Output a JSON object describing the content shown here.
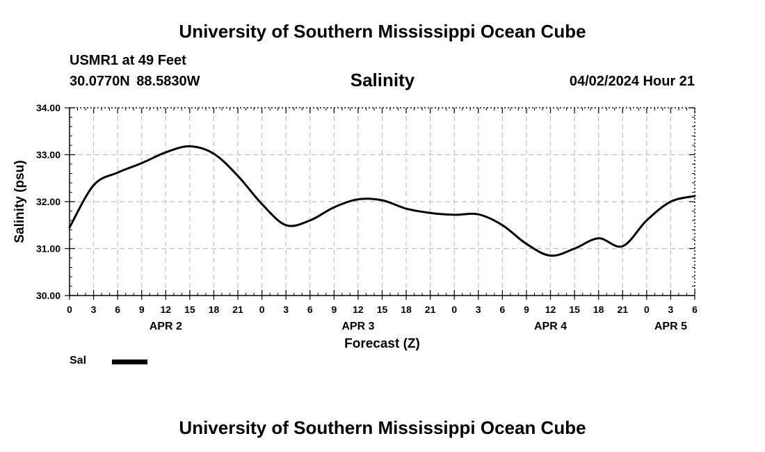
{
  "header": {
    "title_top": "University of Southern Mississippi Ocean Cube",
    "station": "USMR1 at 49 Feet",
    "coords": "30.0770N  88.5830W",
    "datetime": "04/02/2024 Hour 21",
    "title_bottom": "University of Southern Mississippi Ocean Cube"
  },
  "legend": {
    "label": "Sal",
    "line_color": "#000000"
  },
  "colors": {
    "line": "#000000",
    "grid": "#bfbfbf",
    "axis": "#000000"
  },
  "chart_data": {
    "type": "line",
    "title": "Salinity",
    "xlabel": "Forecast (Z)",
    "ylabel": "Salinity (psu)",
    "ylim": [
      30.0,
      34.0
    ],
    "yticks": [
      "30.00",
      "31.00",
      "32.00",
      "33.00",
      "34.00"
    ],
    "xlim": [
      0,
      78
    ],
    "xtick_step": 3,
    "xtick_labels": [
      "0",
      "3",
      "6",
      "9",
      "12",
      "15",
      "18",
      "21",
      "0",
      "3",
      "6",
      "9",
      "12",
      "15",
      "18",
      "21",
      "0",
      "3",
      "6",
      "9",
      "12",
      "15",
      "18",
      "21",
      "0",
      "3",
      "6"
    ],
    "day_labels": [
      {
        "label": "APR 2",
        "hour": 12
      },
      {
        "label": "APR 3",
        "hour": 36
      },
      {
        "label": "APR 4",
        "hour": 60
      },
      {
        "label": "APR 5",
        "hour": 75
      }
    ],
    "grid": true,
    "series": [
      {
        "name": "Sal",
        "x": [
          0,
          3,
          6,
          9,
          12,
          15,
          18,
          21,
          24,
          27,
          30,
          33,
          36,
          39,
          42,
          45,
          48,
          51,
          54,
          57,
          60,
          63,
          66,
          69,
          72,
          75,
          78
        ],
        "y": [
          31.45,
          32.35,
          32.62,
          32.82,
          33.05,
          33.18,
          33.02,
          32.55,
          31.95,
          31.5,
          31.6,
          31.88,
          32.05,
          32.03,
          31.85,
          31.76,
          31.72,
          31.73,
          31.5,
          31.1,
          30.85,
          31.0,
          31.22,
          31.05,
          31.6,
          32.0,
          32.12
        ]
      }
    ]
  }
}
